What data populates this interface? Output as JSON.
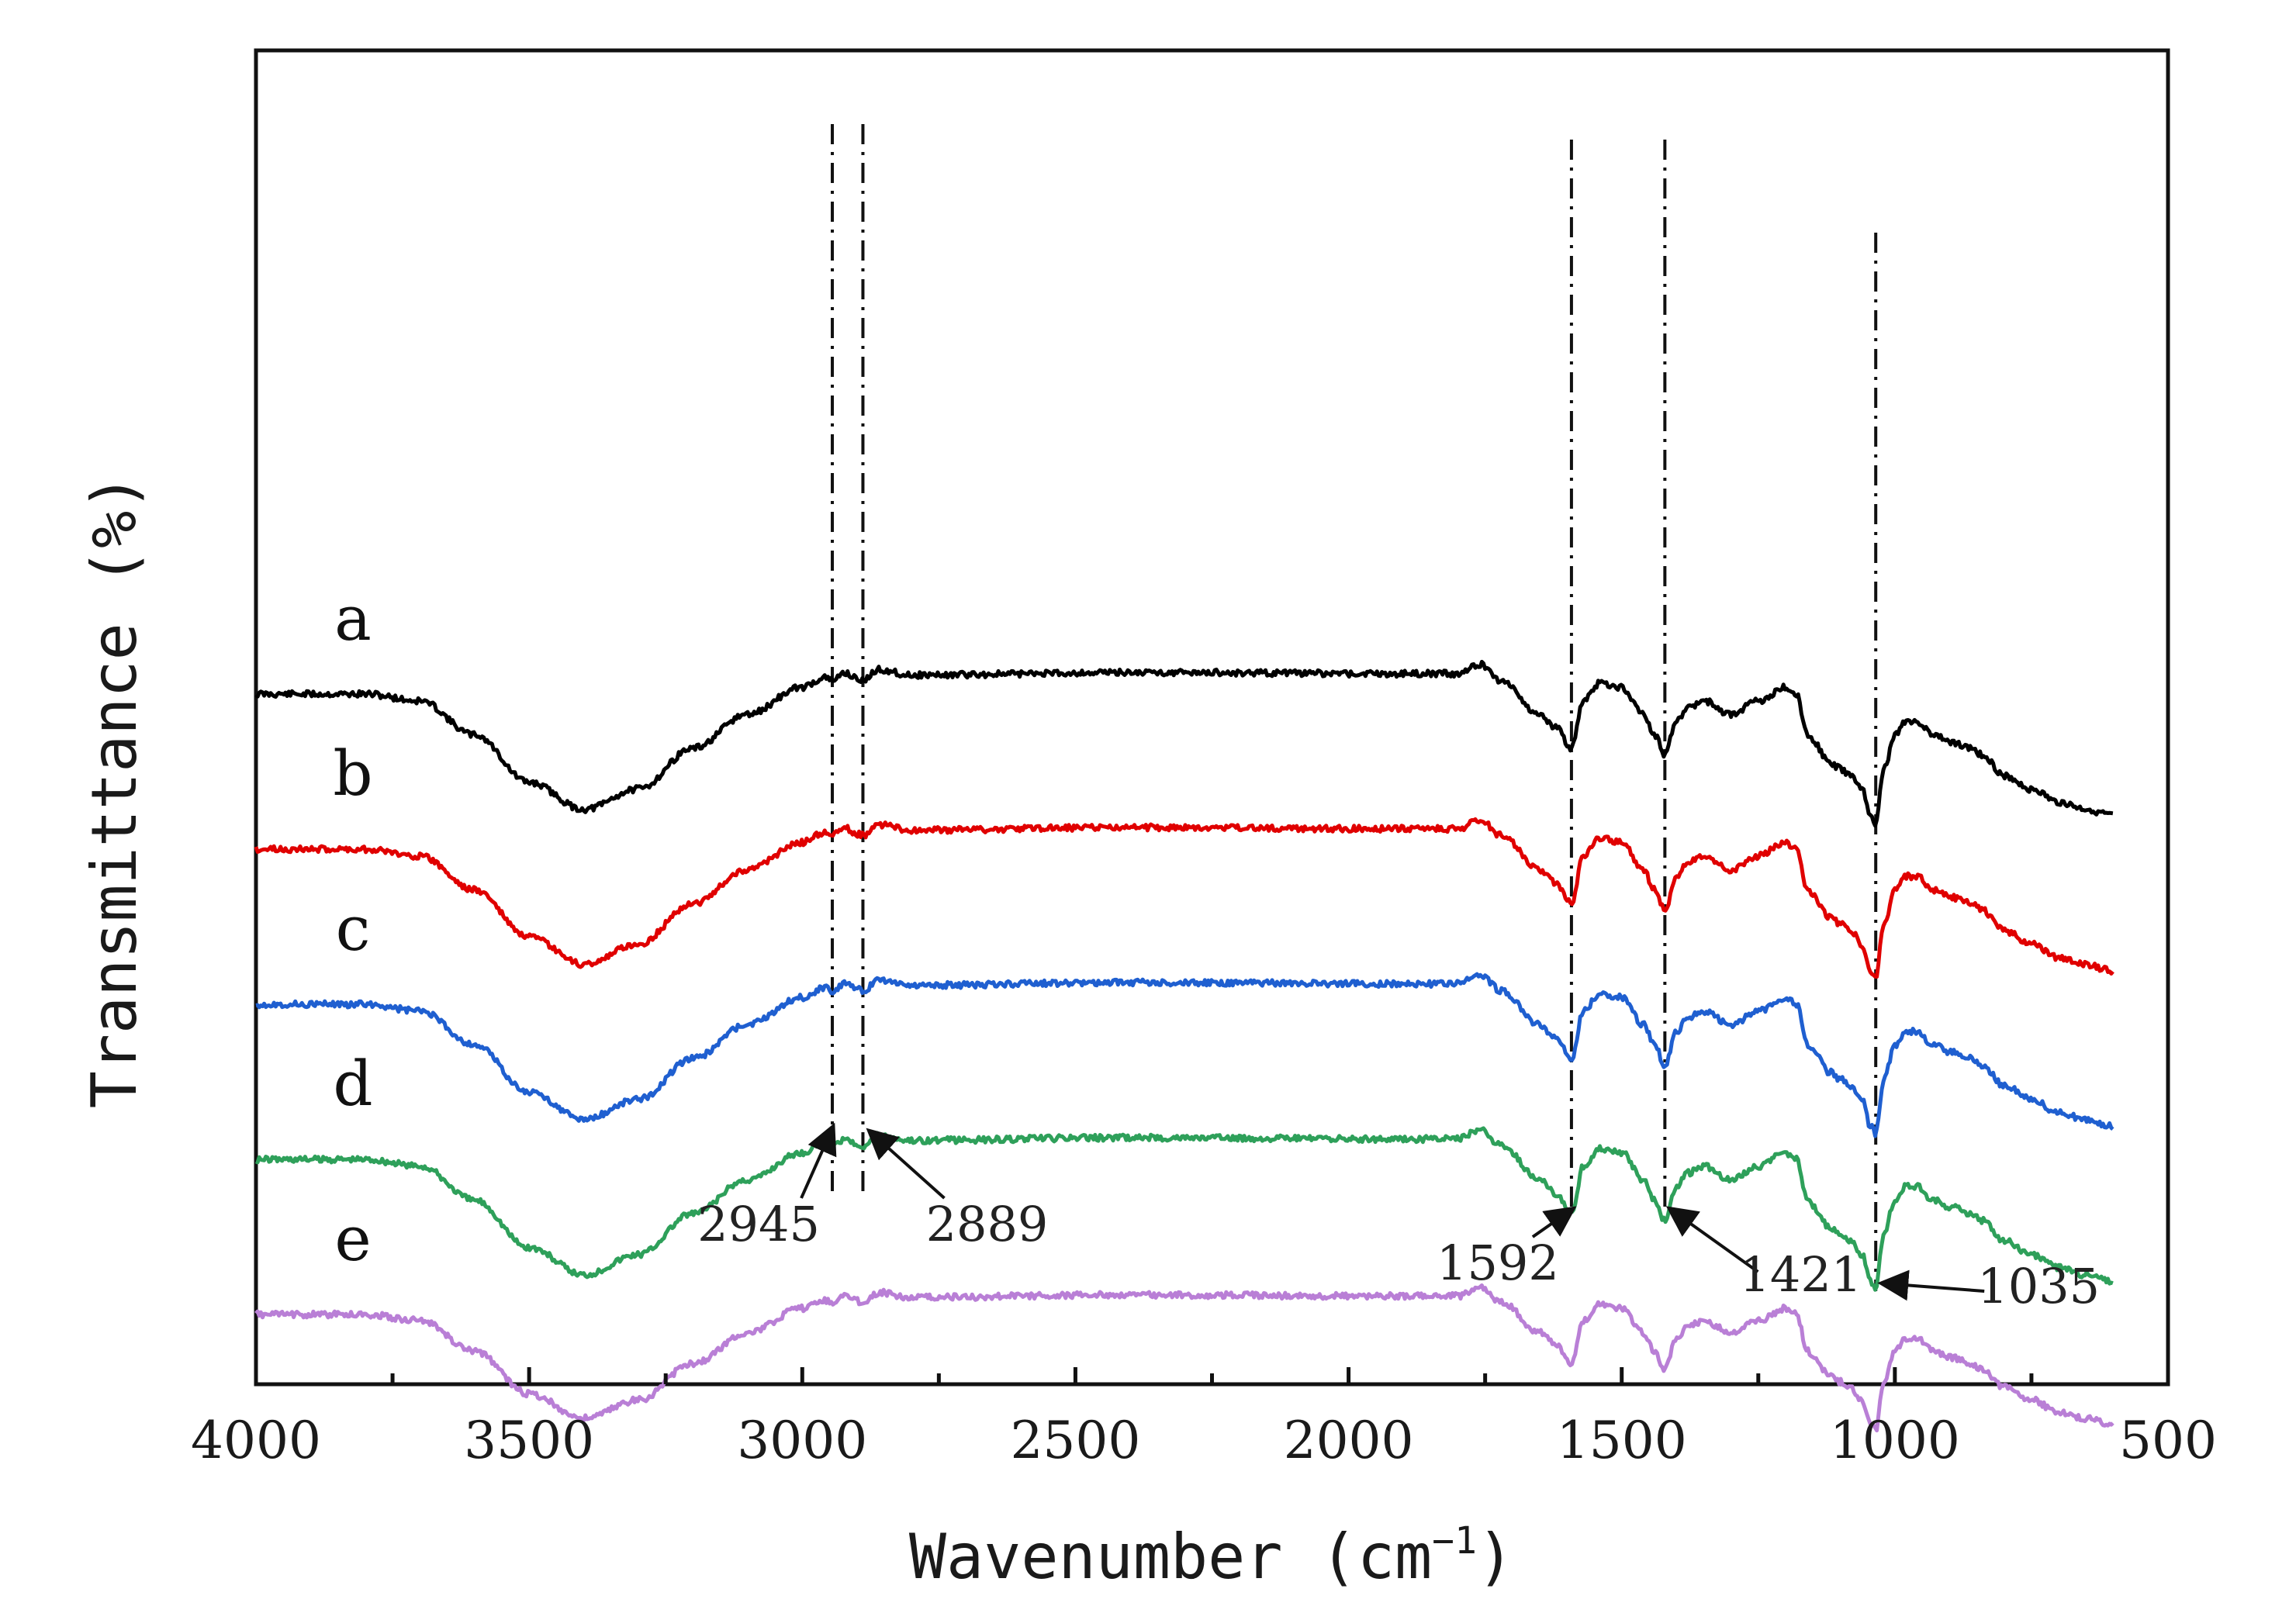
{
  "chart_data": {
    "type": "line",
    "title": "",
    "xlabel": "Wavenumber",
    "xlabel_unit_open": "(cm",
    "xlabel_unit_sup": "−1",
    "xlabel_unit_close": ")",
    "ylabel": "Transmittance  (%)",
    "xlim": [
      4000,
      500
    ],
    "x_reversed": true,
    "x_ticks": [
      4000,
      3500,
      3000,
      2500,
      2000,
      1500,
      1000,
      500
    ],
    "x_tick_labels": [
      "4000",
      "3500",
      "3000",
      "2500",
      "2000",
      "1500",
      "1000",
      "500"
    ],
    "y_ticks_visible": false,
    "grid": false,
    "curve_range": [
      4000,
      600
    ],
    "curve_x_knots": [
      4000,
      3800,
      3700,
      3600,
      3500,
      3400,
      3300,
      3200,
      3100,
      3000,
      2960,
      2945,
      2920,
      2905,
      2889,
      2860,
      2800,
      2400,
      1900,
      1800,
      1760,
      1720,
      1650,
      1620,
      1592,
      1570,
      1540,
      1500,
      1460,
      1440,
      1421,
      1400,
      1380,
      1350,
      1300,
      1250,
      1200,
      1180,
      1160,
      1150,
      1120,
      1100,
      1080,
      1060,
      1045,
      1035,
      1020,
      1000,
      980,
      960,
      930,
      900,
      860,
      840,
      800,
      750,
      700,
      650,
      600
    ],
    "curve_shape": [
      0.0,
      0.0,
      -0.05,
      -0.3,
      -0.65,
      -0.85,
      -0.7,
      -0.4,
      -0.15,
      0.05,
      0.12,
      0.1,
      0.16,
      0.12,
      0.1,
      0.18,
      0.14,
      0.16,
      0.15,
      0.15,
      0.22,
      0.1,
      -0.15,
      -0.25,
      -0.4,
      -0.05,
      0.08,
      0.05,
      -0.15,
      -0.3,
      -0.45,
      -0.2,
      -0.1,
      -0.05,
      -0.15,
      -0.05,
      0.05,
      0.0,
      -0.3,
      -0.35,
      -0.5,
      -0.55,
      -0.6,
      -0.7,
      -0.9,
      -0.95,
      -0.55,
      -0.3,
      -0.2,
      -0.2,
      -0.3,
      -0.35,
      -0.4,
      -0.45,
      -0.6,
      -0.7,
      -0.8,
      -0.85,
      -0.9
    ],
    "series": [
      {
        "name": "a",
        "color": "#000000",
        "offset": 4,
        "scale": 1.0,
        "noise_seed": 11
      },
      {
        "name": "b",
        "color": "#e00000",
        "offset": 3,
        "scale": 1.0,
        "noise_seed": 23
      },
      {
        "name": "c",
        "color": "#1f5fd0",
        "offset": 2,
        "scale": 1.0,
        "noise_seed": 37
      },
      {
        "name": "d",
        "color": "#2ea05a",
        "offset": 1,
        "scale": 1.0,
        "noise_seed": 41
      },
      {
        "name": "e",
        "color": "#b97fd6",
        "offset": 0,
        "scale": 0.9,
        "noise_seed": 53
      }
    ],
    "reference_lines": [
      2945,
      2889,
      1592,
      1421,
      1035
    ],
    "annotations": [
      {
        "label": "2945",
        "x": 2945
      },
      {
        "label": "2889",
        "x": 2889
      },
      {
        "label": "1592",
        "x": 1592
      },
      {
        "label": "1421",
        "x": 1421
      },
      {
        "label": "1035",
        "x": 1035
      }
    ],
    "legend_placement": "inline-left"
  }
}
